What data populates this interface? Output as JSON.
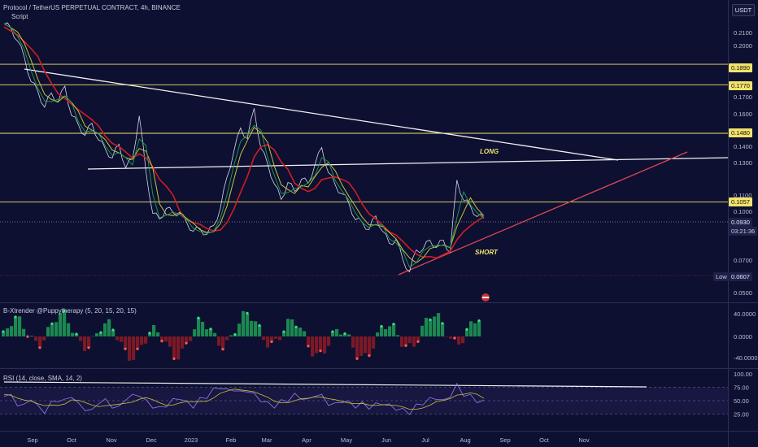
{
  "header": {
    "title": "Protocol / TetherUS PERPETUAL CONTRACT, 4h, BINANCE",
    "subtitle": "Script"
  },
  "currency_button": "USDT",
  "colors": {
    "background": "#0d1030",
    "price_line": "#e8ecff",
    "ma_red": "#d11c24",
    "ma_yellow": "#c8c23a",
    "ma_green": "#1f9e57",
    "level_yellow": "#f1e36b",
    "trend_white": "#f2f2f2",
    "trend_red": "#e04655",
    "rsi": "#8c6fe0"
  },
  "chart_data": [
    {
      "type": "line",
      "panel": "price",
      "y_ticks": [
        0.21,
        0.2,
        0.17,
        0.16,
        0.14,
        0.13,
        0.11,
        0.1,
        0.07,
        0.05
      ],
      "y_tick_labels": [
        "0.2100",
        "0.2000",
        "0.1700",
        "0.1600",
        "0.1400",
        "0.1300",
        "0.1100",
        "0.1000",
        "0.0700",
        "0.0500"
      ],
      "ylim": [
        0.045,
        0.225
      ],
      "x_tick_labels": [
        "Sep",
        "Oct",
        "Nov",
        "Dec",
        "2023",
        "Feb",
        "Mar",
        "Apr",
        "May",
        "Jun",
        "Jul",
        "Aug",
        "Sep",
        "Oct",
        "Nov"
      ],
      "series": [
        {
          "values": [
            0.218,
            0.212,
            0.205,
            0.192,
            0.18,
            0.172,
            0.165,
            0.171,
            0.168,
            0.175,
            0.16,
            0.152,
            0.148,
            0.153,
            0.145,
            0.137,
            0.134,
            0.14,
            0.128,
            0.131,
            0.16,
            0.123,
            0.1,
            0.094,
            0.103,
            0.098,
            0.1,
            0.092,
            0.089,
            0.088,
            0.087,
            0.09,
            0.103,
            0.12,
            0.138,
            0.15,
            0.146,
            0.162,
            0.14,
            0.128,
            0.118,
            0.106,
            0.119,
            0.111,
            0.121,
            0.116,
            0.13,
            0.138,
            0.125,
            0.115,
            0.112,
            0.104,
            0.096,
            0.092,
            0.09,
            0.096,
            0.089,
            0.079,
            0.084,
            0.069,
            0.064,
            0.075,
            0.078,
            0.081,
            0.079,
            0.081,
            0.076,
            0.118,
            0.108,
            0.102,
            0.098,
            0.095
          ]
        }
      ],
      "levels": [
        0.189,
        0.177,
        0.148,
        0.1057
      ],
      "level_labels": [
        "0.1890",
        "0.1770",
        "0.1480",
        "0.1057"
      ],
      "current_price": "0.0930",
      "countdown": "03:21:36",
      "low_label": "Low",
      "low_value": "0.0607",
      "annotations": [
        "LONG",
        "SHORT"
      ]
    },
    {
      "type": "bar",
      "panel": "oscillator",
      "title": "B-Xtrender @Puppytherapy (5, 20, 15, 20, 15)",
      "y_tick_labels": [
        "40.0000",
        "0.0000",
        "-40.0000"
      ]
    },
    {
      "type": "line",
      "panel": "rsi",
      "title": "RSI (14, close, SMA, 14, 2)",
      "y_tick_labels": [
        "100.00",
        "75.00",
        "50.00",
        "25.00"
      ],
      "ylim": [
        0,
        100
      ],
      "series": [
        {
          "values": [
            62,
            58,
            44,
            40,
            55,
            38,
            30,
            45,
            52,
            49,
            60,
            42,
            35,
            30,
            48,
            50,
            40,
            36,
            55,
            58,
            62,
            48,
            40,
            35,
            42,
            50,
            56,
            46,
            40,
            52,
            58,
            70,
            76,
            68,
            72,
            64,
            70,
            60,
            52,
            44,
            40,
            48,
            52,
            60,
            56,
            50,
            62,
            58,
            45,
            42,
            50,
            46,
            40,
            44,
            38,
            42,
            46,
            40,
            36,
            32,
            28,
            40,
            46,
            52,
            56,
            48,
            60,
            78,
            62,
            58,
            50,
            47
          ]
        }
      ]
    }
  ]
}
